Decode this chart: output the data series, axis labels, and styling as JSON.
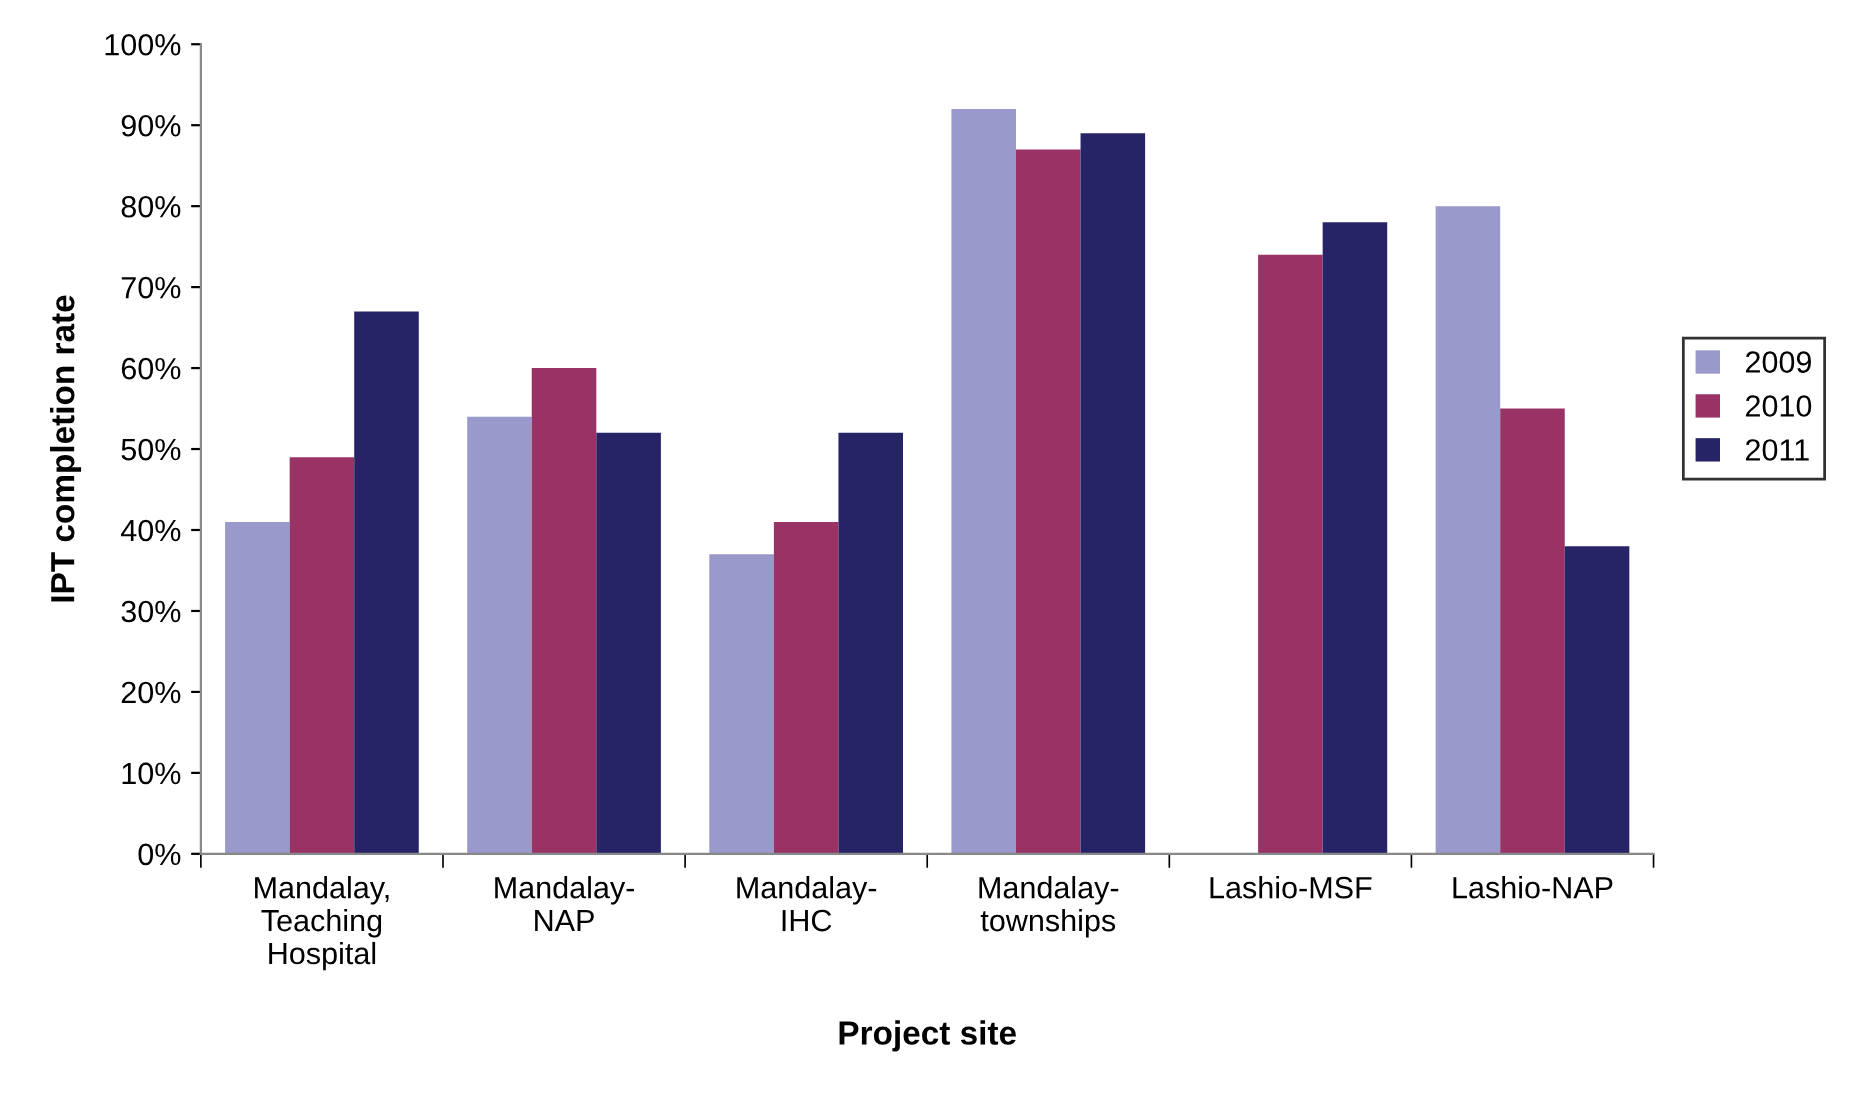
{
  "chart_data": {
    "type": "bar",
    "xlabel": "Project site",
    "ylabel": "IPT completion rate",
    "categories": [
      "Mandalay,\nTeaching\nHospital",
      "Mandalay-\nNAP",
      "Mandalay-\nIHC",
      "Mandalay-\ntownships",
      "Lashio-MSF",
      "Lashio-NAP"
    ],
    "series": [
      {
        "name": "2009",
        "color": "#9999cc",
        "values": [
          41,
          54,
          37,
          92,
          null,
          80
        ]
      },
      {
        "name": "2010",
        "color": "#993366",
        "values": [
          49,
          60,
          41,
          87,
          74,
          55
        ]
      },
      {
        "name": "2011",
        "color": "#262466",
        "values": [
          67,
          52,
          52,
          89,
          78,
          38
        ]
      }
    ],
    "ylim": [
      0,
      100
    ],
    "yticks": [
      {
        "value": 0,
        "label": "0%"
      },
      {
        "value": 10,
        "label": "10%"
      },
      {
        "value": 20,
        "label": "20%"
      },
      {
        "value": 30,
        "label": "30%"
      },
      {
        "value": 40,
        "label": "40%"
      },
      {
        "value": 50,
        "label": "50%"
      },
      {
        "value": 60,
        "label": "60%"
      },
      {
        "value": 70,
        "label": "70%"
      },
      {
        "value": 80,
        "label": "80%"
      },
      {
        "value": 90,
        "label": "90%"
      },
      {
        "value": 100,
        "label": "100%"
      }
    ],
    "grid": false,
    "legend": "right"
  }
}
